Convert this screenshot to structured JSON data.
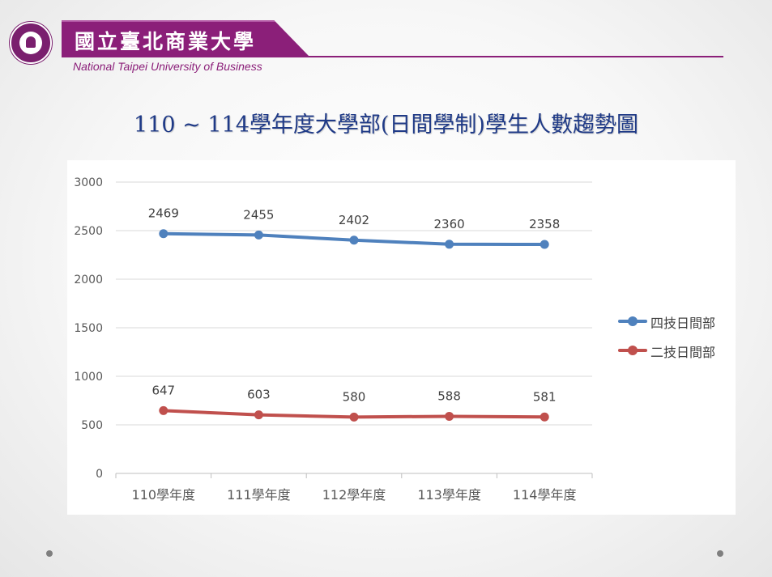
{
  "header": {
    "university_name_zh": "國立臺北商業大學",
    "university_name_en": "National Taipei University of Business"
  },
  "slide": {
    "title": "110 ~ 114學年度大學部(日間學制)學生人數趨勢圖"
  },
  "colors": {
    "brand": "#8b1f79",
    "title": "#1f3a87",
    "series_four_year": "#4f81bd",
    "series_two_year": "#c0504d",
    "grid": "#d9d9d9",
    "axis_text": "#595959"
  },
  "chart_data": {
    "type": "line",
    "categories": [
      "110學年度",
      "111學年度",
      "112學年度",
      "113學年度",
      "114學年度"
    ],
    "series": [
      {
        "name": "四技日間部",
        "color": "#4f81bd",
        "values": [
          2469,
          2455,
          2402,
          2360,
          2358
        ]
      },
      {
        "name": "二技日間部",
        "color": "#c0504d",
        "values": [
          647,
          603,
          580,
          588,
          581
        ]
      }
    ],
    "yticks": [
      "0",
      "500",
      "1000",
      "1500",
      "2000",
      "2500",
      "3000"
    ],
    "ylim": [
      0,
      3000
    ],
    "grid": true,
    "legend_position": "right",
    "data_labels": true
  }
}
